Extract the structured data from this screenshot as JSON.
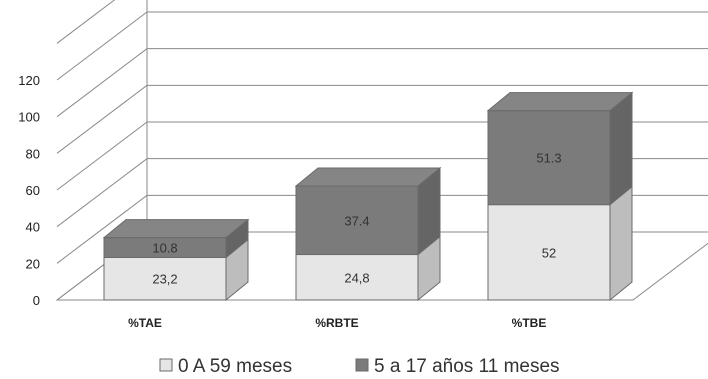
{
  "chart_data": {
    "type": "bar",
    "stacked": true,
    "three_d": true,
    "categories": [
      "%TAE",
      "%RBTE",
      "%TBE"
    ],
    "series": [
      {
        "name": "0 A 59 meses",
        "values": [
          23.2,
          24.8,
          52
        ],
        "labels": [
          "23,2",
          "24,8",
          "52"
        ],
        "color": "#e6e6e6"
      },
      {
        "name": "5 a 17 años 11 meses",
        "values": [
          10.8,
          37.4,
          51.3
        ],
        "labels": [
          "10.8",
          "37.4",
          "51.3"
        ],
        "color": "#7b7b7b"
      }
    ],
    "yticks": [
      "0",
      "20",
      "40",
      "60",
      "80",
      "100",
      "120"
    ],
    "ylim": [
      0,
      120
    ],
    "grid": true,
    "legend_position": "bottom"
  }
}
